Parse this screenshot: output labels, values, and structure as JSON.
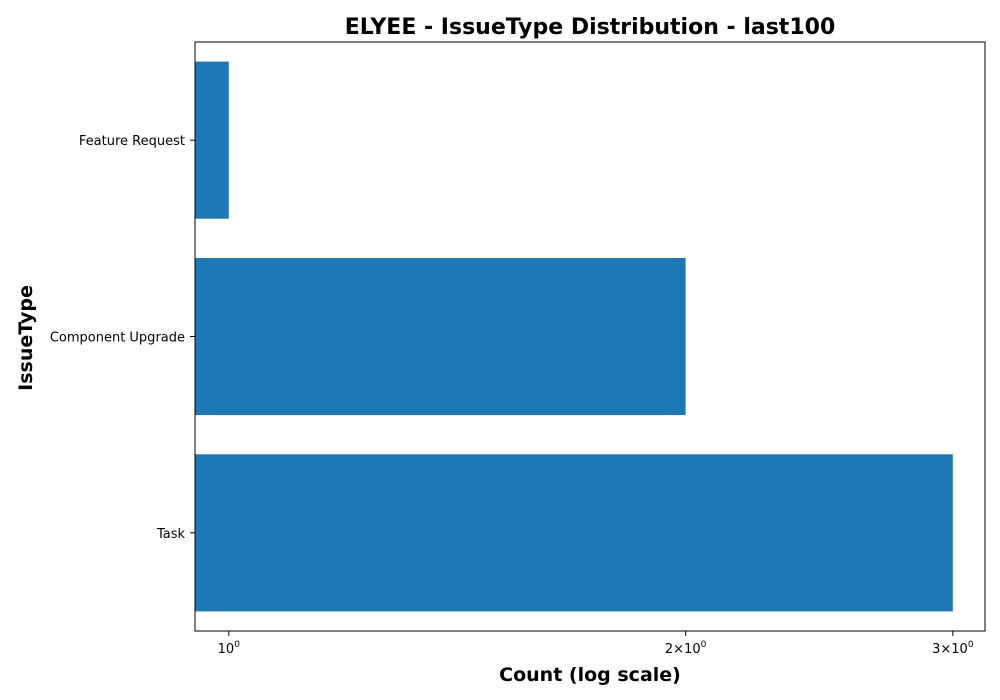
{
  "chart_data": {
    "type": "bar",
    "orientation": "horizontal",
    "title": "ELYEE - IssueType Distribution - last100",
    "xlabel": "Count (log scale)",
    "ylabel": "IssueType",
    "xscale": "log",
    "xlim": [
      0.95,
      3.15
    ],
    "x_ticks": [
      {
        "value": 1,
        "base": "10",
        "exp": "0",
        "coef": ""
      },
      {
        "value": 2,
        "base": "10",
        "exp": "0",
        "coef": "2×"
      },
      {
        "value": 3,
        "base": "10",
        "exp": "0",
        "coef": "3×"
      }
    ],
    "categories": [
      "Feature Request",
      "Component Upgrade",
      "Task"
    ],
    "values": [
      1,
      2,
      3
    ],
    "bar_color": "#1f77b4",
    "grid": false,
    "legend": "none"
  }
}
